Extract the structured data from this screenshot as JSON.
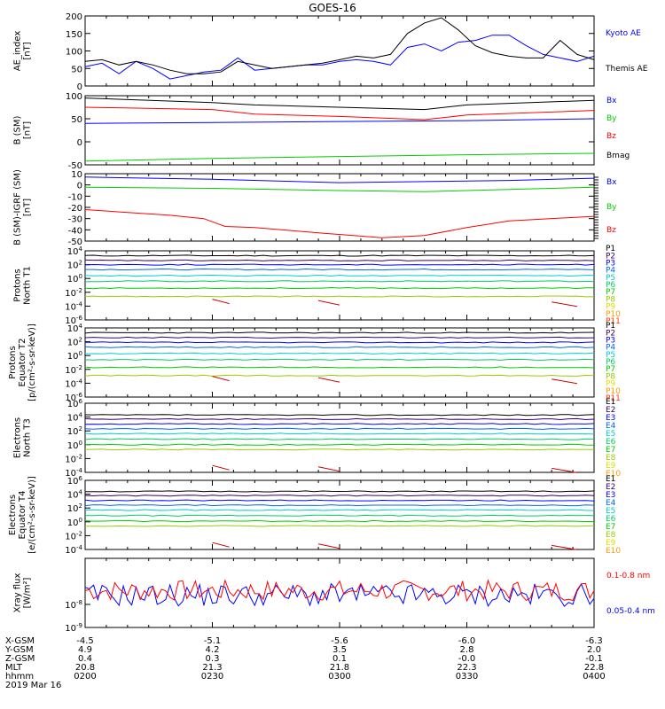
{
  "title": "GOES-16",
  "colors": {
    "black": "#000000",
    "blue": "#0000ff",
    "green": "#00cc00",
    "red": "#ff0000",
    "P": [
      "#000000",
      "#330066",
      "#0000ff",
      "#0066ff",
      "#00cccc",
      "#00cc66",
      "#00cc00",
      "#99cc00",
      "#dddd00",
      "#ff9900",
      "#ff3300",
      "#cc0000"
    ]
  },
  "footer": {
    "rows": [
      {
        "label": "X-GSM",
        "values": [
          "-4.5",
          "-5.1",
          "-5.6",
          "-6.0",
          "-6.3"
        ]
      },
      {
        "label": "Y-GSM",
        "values": [
          "4.9",
          "4.2",
          "3.5",
          "2.8",
          "2.0"
        ]
      },
      {
        "label": "Z-GSM",
        "values": [
          "0.4",
          "0.3",
          "0.1",
          "-0.0",
          "-0.1"
        ]
      },
      {
        "label": "MLT",
        "values": [
          "20.8",
          "21.3",
          "21.8",
          "22.3",
          "22.8"
        ]
      },
      {
        "label": "hhmm",
        "values": [
          "0200",
          "0230",
          "0300",
          "0330",
          "0400"
        ]
      }
    ],
    "date": "2019 Mar 16"
  },
  "chart_data": [
    {
      "type": "line",
      "ylabel": [
        "AE_index",
        "[nT]"
      ],
      "ylim": [
        0,
        200
      ],
      "yticks": [
        "0",
        "50",
        "100",
        "150",
        "200"
      ],
      "series": [
        {
          "name": "Kyoto AE",
          "color": "#0000ff",
          "x": [
            0,
            4,
            8,
            12,
            16,
            20,
            24,
            28,
            32,
            36,
            40,
            44,
            48,
            52,
            56,
            60,
            64,
            68,
            72,
            76,
            80,
            84,
            88,
            92,
            96,
            100,
            104,
            108,
            112,
            116,
            120
          ],
          "values": [
            55,
            65,
            35,
            70,
            50,
            20,
            30,
            40,
            45,
            80,
            45,
            50,
            55,
            60,
            60,
            70,
            75,
            70,
            60,
            110,
            120,
            100,
            125,
            130,
            145,
            145,
            115,
            90,
            80,
            70,
            85
          ]
        },
        {
          "name": "Themis AE",
          "color": "#000000",
          "x": [
            0,
            4,
            8,
            12,
            16,
            20,
            24,
            28,
            32,
            36,
            40,
            44,
            48,
            52,
            56,
            60,
            64,
            68,
            72,
            76,
            80,
            84,
            88,
            92,
            96,
            100,
            104,
            108,
            112,
            116,
            120
          ],
          "values": [
            70,
            75,
            60,
            70,
            60,
            45,
            35,
            35,
            40,
            70,
            60,
            50,
            55,
            60,
            65,
            75,
            85,
            80,
            90,
            150,
            180,
            195,
            160,
            115,
            95,
            85,
            80,
            80,
            130,
            90,
            75
          ]
        }
      ]
    },
    {
      "type": "line",
      "ylabel": [
        "B (SM)",
        "[nT]"
      ],
      "ylim": [
        -50,
        100
      ],
      "yticks": [
        "-50",
        "0",
        "50",
        "100"
      ],
      "series": [
        {
          "name": "Bx",
          "color": "#0000ff",
          "x": [
            0,
            30,
            60,
            90,
            120
          ],
          "values": [
            40,
            42,
            44,
            46,
            50
          ]
        },
        {
          "name": "By",
          "color": "#00cc00",
          "x": [
            0,
            30,
            60,
            90,
            120
          ],
          "values": [
            -42,
            -36,
            -32,
            -28,
            -25
          ]
        },
        {
          "name": "Bz",
          "color": "#ff0000",
          "x": [
            0,
            30,
            40,
            60,
            80,
            90,
            120
          ],
          "values": [
            75,
            70,
            60,
            55,
            48,
            58,
            68
          ]
        },
        {
          "name": "Bmag",
          "color": "#000000",
          "x": [
            0,
            30,
            40,
            60,
            80,
            90,
            120
          ],
          "values": [
            95,
            85,
            80,
            75,
            70,
            80,
            90
          ]
        }
      ]
    },
    {
      "type": "line",
      "ylabel": [
        "B (SM)-IGRF (SM)",
        "[nT]"
      ],
      "ylim": [
        -50,
        10
      ],
      "yticks": [
        "-50",
        "-40",
        "-30",
        "-20",
        "-10",
        "0",
        "10"
      ],
      "series": [
        {
          "name": "Bx",
          "color": "#0000ff",
          "x": [
            0,
            30,
            60,
            80,
            100,
            120
          ],
          "values": [
            7,
            5,
            2,
            3,
            4,
            6
          ]
        },
        {
          "name": "By",
          "color": "#00cc00",
          "x": [
            0,
            30,
            60,
            80,
            100,
            120
          ],
          "values": [
            -2,
            -3,
            -5,
            -6,
            -4,
            -2
          ]
        },
        {
          "name": "Bz",
          "color": "#ff0000",
          "x": [
            0,
            20,
            28,
            33,
            40,
            56,
            70,
            80,
            90,
            100,
            120
          ],
          "values": [
            -22,
            -27,
            -30,
            -37,
            -38,
            -43,
            -47,
            -45,
            -38,
            -32,
            -28
          ]
        }
      ]
    },
    {
      "type": "line",
      "ylabel": [
        "Protons",
        "North T1"
      ],
      "ylog": [
        -6,
        4
      ],
      "yticks": [
        "10^-6",
        "10^-4",
        "10^-2",
        "10^0",
        "10^2",
        "10^4"
      ],
      "legend": [
        "P1",
        "P2",
        "P3",
        "P4",
        "P5",
        "P6",
        "P7",
        "P8",
        "P9",
        "P10",
        "P11"
      ],
      "series_levels_log10": [
        3.3,
        2.6,
        2.0,
        1.3,
        0.4,
        -0.4,
        -1.4,
        -2.6
      ]
    },
    {
      "type": "line",
      "ylabel": [
        "Protons",
        "Equator T2",
        "[p/(cm²-s-sr-keV)]"
      ],
      "ylog": [
        -6,
        4
      ],
      "yticks": [
        "10^-6",
        "10^-4",
        "10^-2",
        "10^0",
        "10^2",
        "10^4"
      ],
      "legend": [
        "P1",
        "P2",
        "P3",
        "P4",
        "P5",
        "P6",
        "P7",
        "P8",
        "P9",
        "P10",
        "P11"
      ],
      "series_levels_log10": [
        3.3,
        2.6,
        1.9,
        1.2,
        0.3,
        -0.6,
        -1.7,
        -2.9
      ]
    },
    {
      "type": "line",
      "ylabel": [
        "Electrons",
        "North T3"
      ],
      "ylog": [
        -4,
        6
      ],
      "yticks": [
        "10^-4",
        "10^-2",
        "10^0",
        "10^2",
        "10^4",
        "10^6"
      ],
      "legend": [
        "E1",
        "E2",
        "E3",
        "E4",
        "E5",
        "E6",
        "E7",
        "E8",
        "E9",
        "E10"
      ],
      "series_levels_log10": [
        4.3,
        3.7,
        3.0,
        2.3,
        1.6,
        0.8,
        0.0,
        -0.7
      ]
    },
    {
      "type": "line",
      "ylabel": [
        "Electrons",
        "Equator T4",
        "[e/(cm²-s-sr-keV)]"
      ],
      "ylog": [
        -4,
        6
      ],
      "yticks": [
        "10^-4",
        "10^-2",
        "10^0",
        "10^2",
        "10^4",
        "10^6"
      ],
      "legend": [
        "E1",
        "E2",
        "E3",
        "E4",
        "E5",
        "E6",
        "E7",
        "E8",
        "E9",
        "E10"
      ],
      "series_levels_log10": [
        4.4,
        3.8,
        3.1,
        2.4,
        1.7,
        0.9,
        0.1,
        -0.6
      ]
    },
    {
      "type": "line",
      "ylabel": [
        "Xray flux",
        "[W/m²]"
      ],
      "ylog": [
        -9,
        -6
      ],
      "yticks": [
        "10^-9",
        "10^-8"
      ],
      "series": [
        {
          "name": "0.1-0.8 nm",
          "color": "#ff0000"
        },
        {
          "name": "0.05-0.4 nm",
          "color": "#0000ff"
        }
      ]
    }
  ]
}
